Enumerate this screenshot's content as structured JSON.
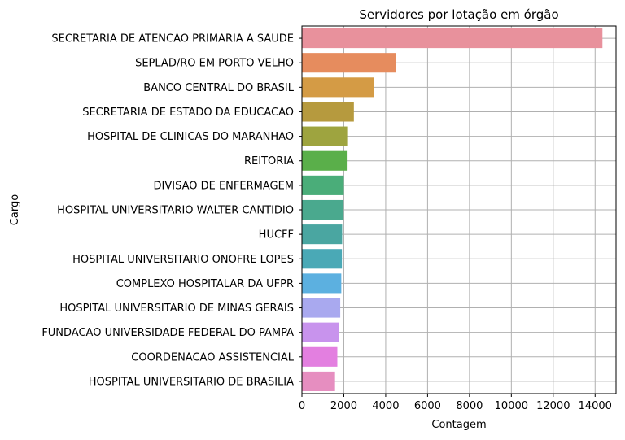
{
  "chart_data": {
    "type": "bar",
    "orientation": "horizontal",
    "title": "Servidores por lotação em órgão",
    "xlabel": "Contagem",
    "ylabel": "Cargo",
    "xlim": [
      0,
      15000
    ],
    "xticks": [
      0,
      2000,
      4000,
      6000,
      8000,
      10000,
      12000,
      14000
    ],
    "grid": true,
    "categories": [
      "SECRETARIA DE ATENCAO PRIMARIA A SAUDE",
      "SEPLAD/RO EM PORTO VELHO",
      "BANCO CENTRAL DO BRASIL",
      "SECRETARIA DE ESTADO DA EDUCACAO",
      "HOSPITAL DE CLINICAS DO MARANHAO",
      "REITORIA",
      "DIVISAO DE ENFERMAGEM",
      "HOSPITAL UNIVERSITARIO WALTER CANTIDIO",
      "HUCFF",
      "HOSPITAL UNIVERSITARIO ONOFRE LOPES",
      "COMPLEXO HOSPITALAR DA UFPR",
      "HOSPITAL UNIVERSITARIO DE MINAS GERAIS",
      "FUNDACAO UNIVERSIDADE FEDERAL DO PAMPA",
      "COORDENACAO ASSISTENCIAL",
      "HOSPITAL UNIVERSITARIO DE BRASILIA"
    ],
    "values": [
      14350,
      4500,
      3420,
      2480,
      2200,
      2180,
      2000,
      1990,
      1920,
      1910,
      1880,
      1830,
      1760,
      1690,
      1580
    ],
    "colors": [
      "#e8919c",
      "#e68c5e",
      "#d49b45",
      "#b69a3e",
      "#9ea43f",
      "#5aaf4a",
      "#4aad79",
      "#4aa98e",
      "#4aa6a1",
      "#4aa9b6",
      "#5cb0e0",
      "#a9a9ef",
      "#c893ed",
      "#e37fe0",
      "#e68ec0"
    ]
  }
}
